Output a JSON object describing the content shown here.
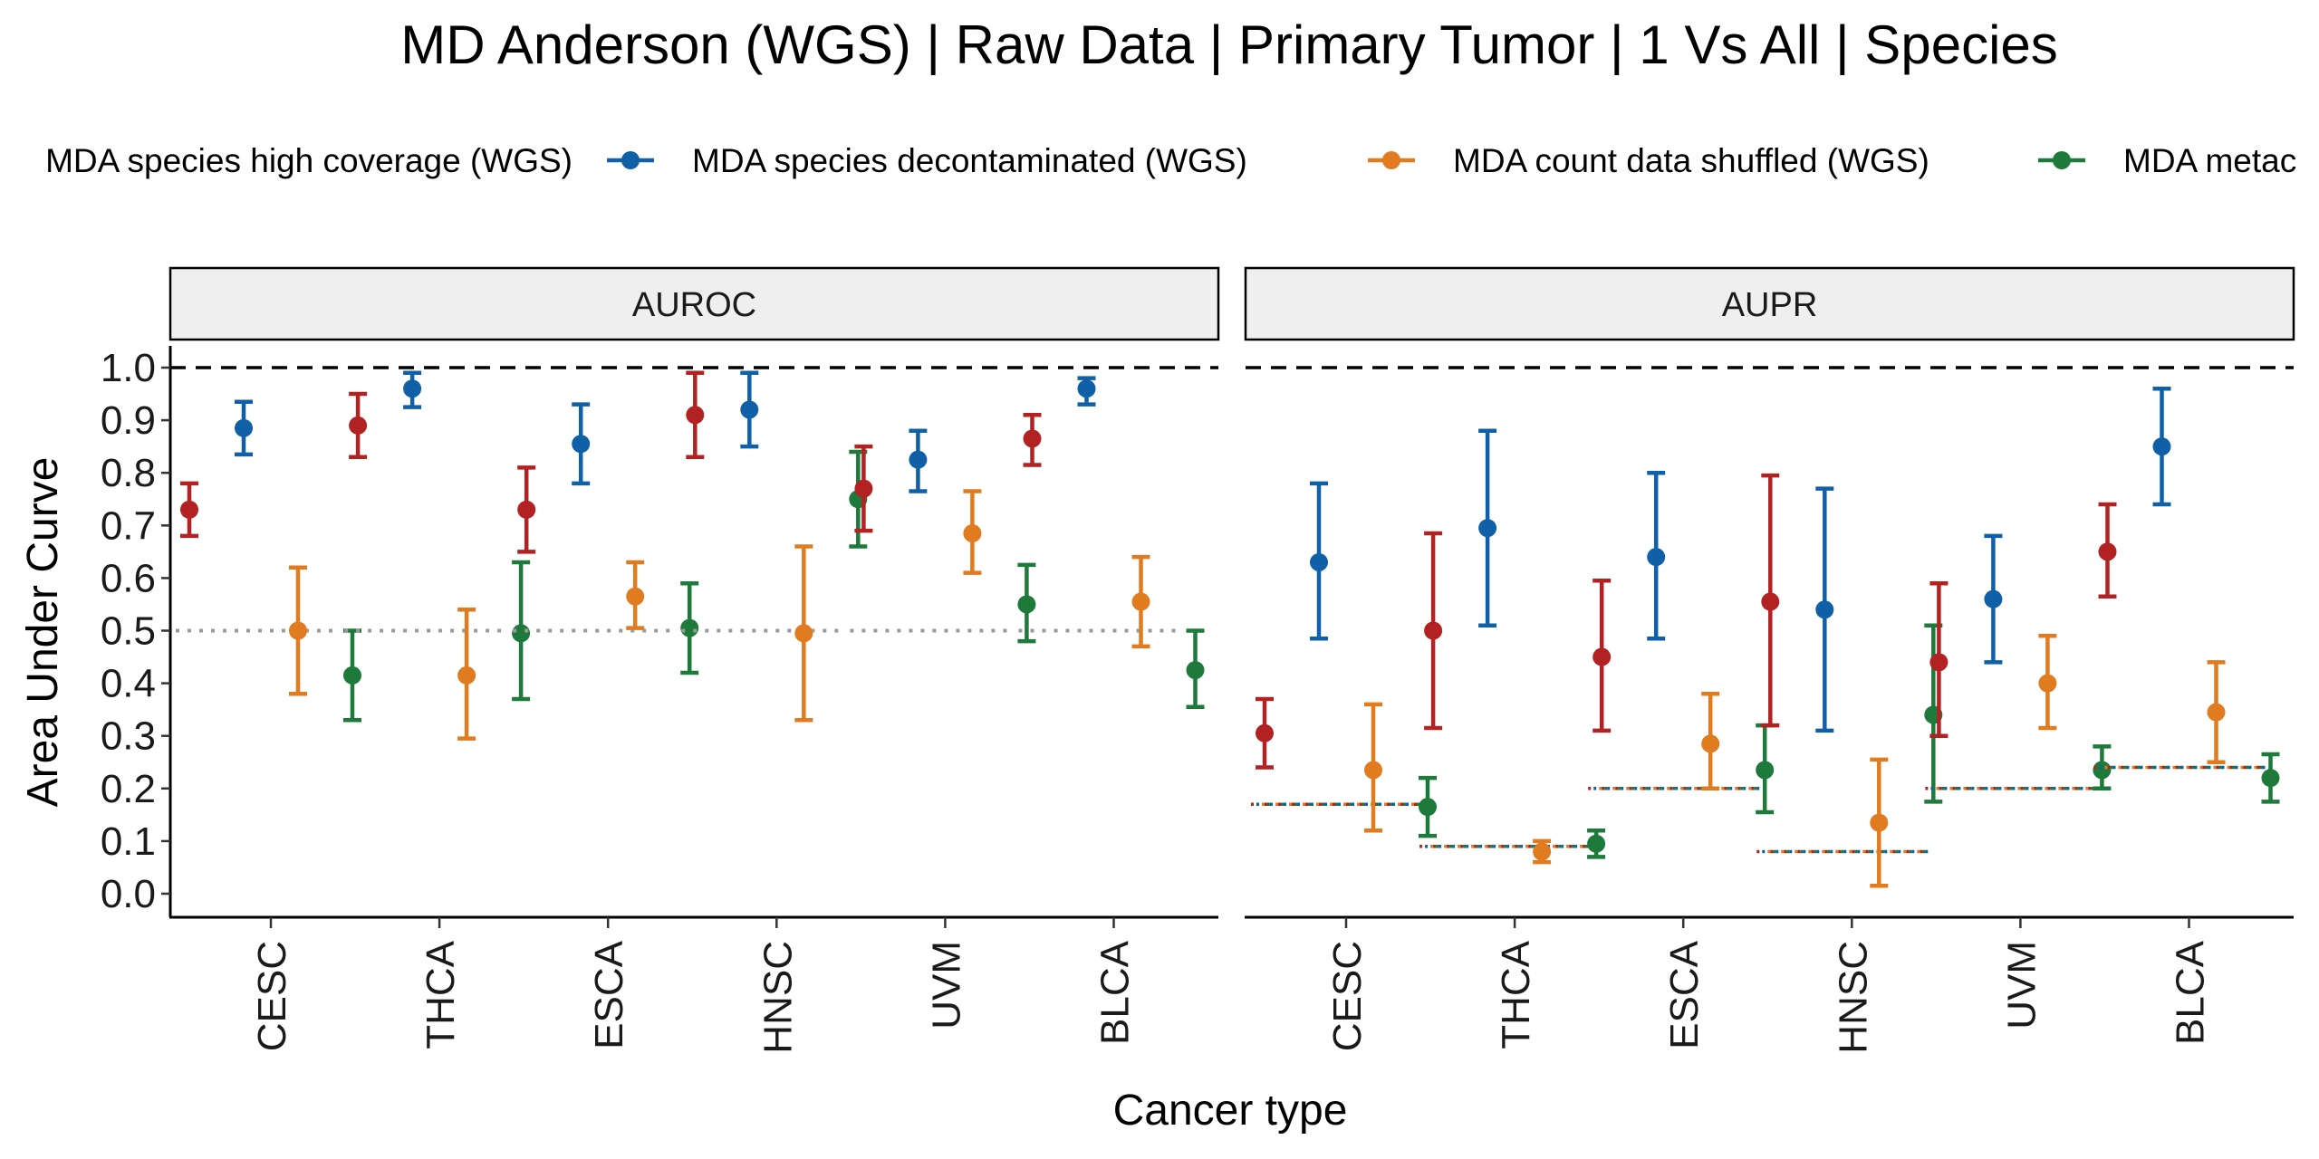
{
  "chart_data": {
    "type": "errorbar",
    "title": "MD Anderson (WGS) | Raw Data | Primary Tumor | 1 Vs All | Species",
    "xlabel": "Cancer type",
    "ylabel": "Area Under Curve",
    "ylim": [
      0,
      1
    ],
    "yticks": [
      "0.0",
      "0.1",
      "0.2",
      "0.3",
      "0.4",
      "0.5",
      "0.6",
      "0.7",
      "0.8",
      "0.9",
      "1.0"
    ],
    "reference_line": 1.0,
    "grid": false,
    "legend_position": "top",
    "categories": [
      "CESC",
      "THCA",
      "ESCA",
      "HNSC",
      "UVM",
      "BLCA"
    ],
    "series": [
      {
        "name": "MDA species high coverage (WGS)",
        "color": "#B22222"
      },
      {
        "name": "MDA species decontaminated (WGS)",
        "color": "#1060A8"
      },
      {
        "name": "MDA count data shuffled (WGS)",
        "color": "#E07B20"
      },
      {
        "name": "MDA metac",
        "color": "#1E7A3A"
      }
    ],
    "panels": [
      {
        "label": "AUROC",
        "baselines": [
          0.5,
          0.5,
          0.5,
          0.5,
          0.5,
          0.5
        ],
        "data": [
          [
            [
              0.73,
              0.68,
              0.78
            ],
            [
              0.89,
              0.83,
              0.95
            ],
            [
              0.73,
              0.65,
              0.81
            ],
            [
              0.91,
              0.83,
              0.99
            ],
            [
              0.77,
              0.69,
              0.85
            ],
            [
              0.865,
              0.815,
              0.91
            ]
          ],
          [
            [
              0.885,
              0.835,
              0.935
            ],
            [
              0.96,
              0.925,
              0.99
            ],
            [
              0.855,
              0.78,
              0.93
            ],
            [
              0.92,
              0.85,
              0.99
            ],
            [
              0.825,
              0.765,
              0.88
            ],
            [
              0.96,
              0.93,
              0.98
            ]
          ],
          [
            [
              0.5,
              0.38,
              0.62
            ],
            [
              0.415,
              0.295,
              0.54
            ],
            [
              0.565,
              0.505,
              0.63
            ],
            [
              0.495,
              0.33,
              0.66
            ],
            [
              0.685,
              0.61,
              0.765
            ],
            [
              0.555,
              0.47,
              0.64
            ]
          ],
          [
            [
              0.415,
              0.33,
              0.5
            ],
            [
              0.495,
              0.37,
              0.63
            ],
            [
              0.505,
              0.42,
              0.59
            ],
            [
              0.75,
              0.66,
              0.84
            ],
            [
              0.55,
              0.48,
              0.625
            ],
            [
              0.425,
              0.355,
              0.5
            ]
          ]
        ]
      },
      {
        "label": "AUPR",
        "baselines": [
          0.17,
          0.09,
          0.2,
          0.08,
          0.2,
          0.24
        ],
        "data": [
          [
            [
              0.305,
              0.24,
              0.37
            ],
            [
              0.5,
              0.315,
              0.685
            ],
            [
              0.45,
              0.31,
              0.595
            ],
            [
              0.555,
              0.32,
              0.795
            ],
            [
              0.44,
              0.3,
              0.59
            ],
            [
              0.65,
              0.565,
              0.74
            ]
          ],
          [
            [
              0.63,
              0.485,
              0.78
            ],
            [
              0.695,
              0.51,
              0.88
            ],
            [
              0.64,
              0.485,
              0.8
            ],
            [
              0.54,
              0.31,
              0.77
            ],
            [
              0.56,
              0.44,
              0.68
            ],
            [
              0.85,
              0.74,
              0.96
            ]
          ],
          [
            [
              0.235,
              0.12,
              0.36
            ],
            [
              0.08,
              0.06,
              0.1
            ],
            [
              0.285,
              0.2,
              0.38
            ],
            [
              0.135,
              0.015,
              0.255
            ],
            [
              0.4,
              0.315,
              0.49
            ],
            [
              0.345,
              0.25,
              0.44
            ]
          ],
          [
            [
              0.165,
              0.11,
              0.22
            ],
            [
              0.095,
              0.07,
              0.12
            ],
            [
              0.235,
              0.155,
              0.32
            ],
            [
              0.34,
              0.175,
              0.51
            ],
            [
              0.235,
              0.2,
              0.28
            ],
            [
              0.22,
              0.175,
              0.265
            ]
          ]
        ]
      }
    ]
  }
}
